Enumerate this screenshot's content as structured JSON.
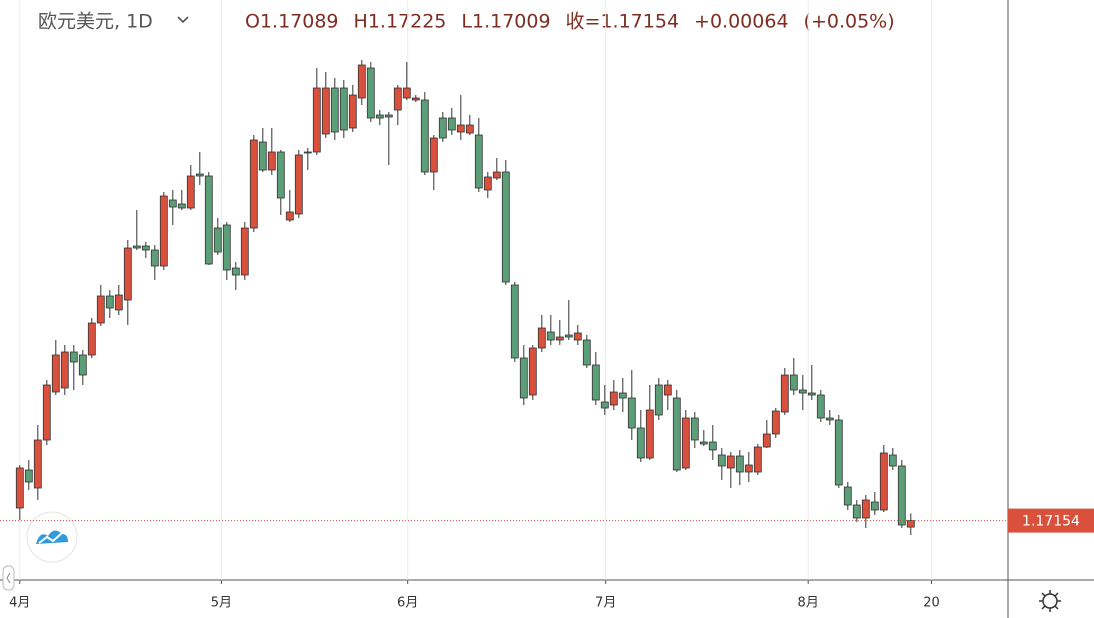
{
  "chart_data": {
    "type": "candlestick",
    "title": "欧元美元, 1D",
    "header": [
      "O1.17089",
      "H1.17225",
      "L1.17009",
      "收=1.17154",
      "+0.00064",
      "(+0.05%)"
    ],
    "up_color": "#d9503d",
    "down_color": "#5c9e78",
    "xlim": [
      -2.2,
      109.8
    ],
    "ylim": [
      1.1656,
      1.2236
    ],
    "xticks": [
      {
        "value": 0,
        "label": "4月"
      },
      {
        "value": 22.4,
        "label": "5月"
      },
      {
        "value": 43.1,
        "label": "6月"
      },
      {
        "value": 65.1,
        "label": "7月"
      },
      {
        "value": 87.6,
        "label": "8月"
      },
      {
        "value": 101.3,
        "label": "20"
      }
    ],
    "grid": true,
    "open": [
      1.1728,
      1.1766,
      1.1748,
      1.1796,
      1.1844,
      1.1848,
      1.1884,
      1.1881,
      1.1881,
      1.1913,
      1.194,
      1.1926,
      1.1936,
      1.199,
      1.199,
      1.1986,
      1.197,
      1.2036,
      1.2032,
      1.2028,
      1.2062,
      1.206,
      1.2008,
      1.2011,
      1.1968,
      1.1961,
      1.2008,
      1.2094,
      1.2066,
      1.2084,
      1.2016,
      1.2022,
      1.2084,
      1.2084,
      1.2102,
      1.2148,
      1.2148,
      1.2108,
      1.2138,
      1.2168,
      1.2121,
      1.2121,
      1.2126,
      1.2138,
      1.2136,
      1.2136,
      1.2064,
      1.2118,
      1.2118,
      1.2104,
      1.2103,
      1.2101,
      1.2046,
      1.2058,
      1.2064,
      1.1951,
      1.1878,
      1.1841,
      1.1888,
      1.1904,
      1.1896,
      1.1901,
      1.1896,
      1.1896,
      1.1871,
      1.1834,
      1.1831,
      1.1843,
      1.1838,
      1.1808,
      1.1778,
      1.1851,
      1.1841,
      1.1838,
      1.1768,
      1.1818,
      1.1794,
      1.1794,
      1.1781,
      1.1768,
      1.178,
      1.1764,
      1.1764,
      1.1789,
      1.1802,
      1.1824,
      1.1861,
      1.1846,
      1.1843,
      1.1841,
      1.1818,
      1.1816,
      1.1749,
      1.1731,
      1.1718,
      1.1734,
      1.1726,
      1.1781,
      1.177,
      1.17089
    ],
    "high": [
      1.1771,
      1.1776,
      1.1811,
      1.1856,
      1.1896,
      1.1891,
      1.1891,
      1.1886,
      1.1918,
      1.1951,
      1.1946,
      1.1951,
      1.1996,
      1.2026,
      1.1994,
      1.1991,
      1.2044,
      1.2046,
      1.2046,
      1.2071,
      1.2084,
      1.2064,
      1.2018,
      1.2014,
      1.1974,
      1.2014,
      1.2101,
      1.2108,
      1.2108,
      1.2086,
      1.2046,
      1.2086,
      1.2088,
      1.2168,
      1.2164,
      1.2158,
      1.2156,
      1.2151,
      1.2176,
      1.2174,
      1.2126,
      1.2124,
      1.2151,
      1.2174,
      1.2141,
      1.2144,
      1.2101,
      1.2124,
      1.2128,
      1.2141,
      1.2121,
      1.2118,
      1.2064,
      1.2078,
      1.2076,
      1.1954,
      1.1891,
      1.1891,
      1.1921,
      1.1921,
      1.1916,
      1.1936,
      1.1911,
      1.1901,
      1.1884,
      1.1851,
      1.1856,
      1.1858,
      1.1866,
      1.1826,
      1.1851,
      1.1858,
      1.1856,
      1.1846,
      1.1826,
      1.1824,
      1.1806,
      1.1811,
      1.1788,
      1.1784,
      1.1786,
      1.1784,
      1.1792,
      1.1816,
      1.1828,
      1.1868,
      1.1878,
      1.1861,
      1.1871,
      1.1846,
      1.1826,
      1.1821,
      1.1754,
      1.1736,
      1.1741,
      1.1744,
      1.1791,
      1.1788,
      1.1776,
      1.17225
    ],
    "low": [
      1.1716,
      1.1746,
      1.1736,
      1.1791,
      1.1841,
      1.1841,
      1.1846,
      1.1851,
      1.1878,
      1.191,
      1.1918,
      1.1921,
      1.1911,
      1.1986,
      1.1978,
      1.1956,
      1.1966,
      1.2011,
      1.2026,
      1.2026,
      1.2051,
      1.1971,
      1.1981,
      1.1956,
      1.1946,
      1.1956,
      1.2004,
      1.2064,
      1.2061,
      1.2021,
      1.2014,
      1.2018,
      1.2066,
      1.2081,
      1.2098,
      1.2096,
      1.2098,
      1.2104,
      1.2131,
      1.2114,
      1.2111,
      1.2071,
      1.2111,
      1.2136,
      1.2134,
      1.2061,
      1.2046,
      1.2094,
      1.2101,
      1.2096,
      1.2101,
      1.2044,
      1.2038,
      1.2056,
      1.1951,
      1.1874,
      1.1831,
      1.1836,
      1.1884,
      1.1891,
      1.1891,
      1.1896,
      1.1891,
      1.1868,
      1.1831,
      1.1821,
      1.1826,
      1.1824,
      1.1796,
      1.1774,
      1.1776,
      1.1816,
      1.1826,
      1.1764,
      1.1766,
      1.1788,
      1.179,
      1.1776,
      1.1756,
      1.1748,
      1.1751,
      1.1754,
      1.1761,
      1.1788,
      1.1798,
      1.1821,
      1.1841,
      1.1826,
      1.1836,
      1.1814,
      1.1811,
      1.1748,
      1.1726,
      1.1714,
      1.1708,
      1.1721,
      1.1724,
      1.1766,
      1.1708,
      1.17009
    ],
    "close": [
      1.1768,
      1.1754,
      1.1796,
      1.1851,
      1.1881,
      1.1884,
      1.1874,
      1.1861,
      1.1913,
      1.194,
      1.1928,
      1.1941,
      1.1988,
      1.1988,
      1.1986,
      1.197,
      1.204,
      1.2029,
      1.2028,
      1.206,
      1.206,
      1.1972,
      1.1984,
      1.1966,
      1.1961,
      1.2008,
      1.2096,
      1.2066,
      1.2084,
      1.2038,
      1.2024,
      1.2081,
      1.2083,
      1.2148,
      1.2148,
      1.2104,
      1.2106,
      1.2141,
      1.2171,
      1.2118,
      1.2118,
      1.2119,
      1.2148,
      1.2148,
      1.2138,
      1.2064,
      1.2098,
      1.2098,
      1.2106,
      1.2111,
      1.2111,
      1.2048,
      1.2059,
      1.2064,
      1.1954,
      1.1878,
      1.1838,
      1.1888,
      1.1908,
      1.1896,
      1.1899,
      1.1899,
      1.1903,
      1.1871,
      1.1836,
      1.1828,
      1.1844,
      1.1838,
      1.1808,
      1.1778,
      1.1826,
      1.1821,
      1.1851,
      1.1766,
      1.1818,
      1.1796,
      1.1792,
      1.1786,
      1.177,
      1.178,
      1.1764,
      1.1771,
      1.1789,
      1.1802,
      1.1825,
      1.1861,
      1.1846,
      1.1843,
      1.1841,
      1.1818,
      1.1816,
      1.1751,
      1.1731,
      1.1718,
      1.1736,
      1.1726,
      1.1783,
      1.177,
      1.1711,
      1.17154
    ]
  }
}
